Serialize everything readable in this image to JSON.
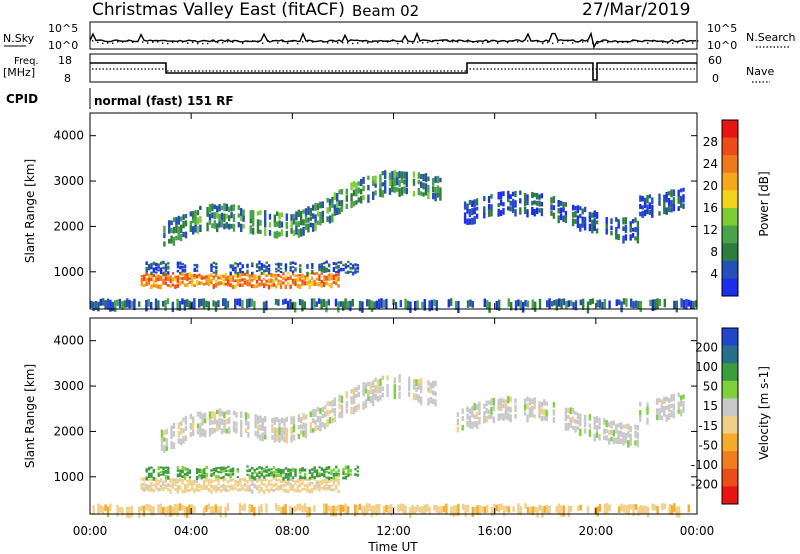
{
  "header": {
    "title": "Christmas Valley East (fitACF)",
    "beam": "Beam 02",
    "date": "27/Mar/2019"
  },
  "strips": {
    "nsky_label": "N.Sky",
    "nsearch_label": "N.Search",
    "noise_ticks": [
      "10^5",
      "10^0"
    ],
    "freq_label": "Freq.",
    "freq_unit": "[MHz]",
    "freq_ticks": [
      "18",
      "8"
    ],
    "nave_label": "Nave",
    "nave_ticks": [
      "60",
      "0"
    ],
    "cpid_label": "CPID",
    "cpid_text": "normal (fast) 151 RF"
  },
  "colors": {
    "power": [
      "#1b2fe8",
      "#2450b8",
      "#2e7d3f",
      "#4aa34a",
      "#7dcc33",
      "#f2d31b",
      "#f4a81e",
      "#ef7a1c",
      "#ec4c19",
      "#e71414"
    ],
    "velocity": [
      "#e81414",
      "#ec4c19",
      "#f07e1e",
      "#f7ab2a",
      "#f0d08a",
      "#c9c9c9",
      "#7ed13a",
      "#3c9b3c",
      "#2a6e8c",
      "#2246c8"
    ]
  },
  "chart_data": [
    {
      "type": "heatmap",
      "title": "Power",
      "ylabel": "Slant Range [km]",
      "xlabel": "Time UT",
      "x_ticks": [
        "00:00",
        "04:00",
        "08:00",
        "12:00",
        "16:00",
        "20:00",
        "00:00"
      ],
      "xlim_hours": [
        0,
        24
      ],
      "y_ticks": [
        1000,
        2000,
        3000,
        4000
      ],
      "ylim": [
        180,
        4500
      ],
      "colorbar": {
        "label": "Power [dB]",
        "ticks": [
          "4",
          "8",
          "12",
          "16",
          "20",
          "24",
          "28"
        ]
      },
      "bands": [
        {
          "name": "near-range echoes",
          "t": [
            2.0,
            9.8
          ],
          "range_km": [
            700,
            1000
          ],
          "dB": 24
        },
        {
          "name": "upper near-range",
          "t": [
            2.1,
            10.6
          ],
          "range_km": [
            1000,
            1250
          ],
          "dB": 6
        },
        {
          "name": "rising tongue",
          "t": [
            2.8,
            13.9
          ],
          "range_km": [
            1600,
            3400
          ],
          "dB": 10
        },
        {
          "name": "late-day patches",
          "t": [
            14.5,
            23.5
          ],
          "range_km": [
            2000,
            3100
          ],
          "dB": 6
        },
        {
          "name": "ground clutter",
          "t": [
            0.0,
            24.0
          ],
          "range_km": [
            180,
            420
          ],
          "dB": 8
        }
      ]
    },
    {
      "type": "heatmap",
      "title": "Velocity",
      "ylabel": "Slant Range [km]",
      "xlabel": "Time UT",
      "x_ticks": [
        "00:00",
        "04:00",
        "08:00",
        "12:00",
        "16:00",
        "20:00",
        "00:00"
      ],
      "xlim_hours": [
        0,
        24
      ],
      "y_ticks": [
        1000,
        2000,
        3000,
        4000
      ],
      "ylim": [
        180,
        4500
      ],
      "colorbar": {
        "label": "Velocity [m s-1]",
        "ticks": [
          "200",
          "100",
          "50",
          "15",
          "-15",
          "-50",
          "-100",
          "-200"
        ]
      },
      "bands": [
        {
          "name": "near-range echoes",
          "t": [
            2.0,
            9.8
          ],
          "range_km": [
            700,
            1000
          ],
          "ms": -30
        },
        {
          "name": "upper near-range",
          "t": [
            2.1,
            10.6
          ],
          "range_km": [
            1000,
            1250
          ],
          "ms": 60
        },
        {
          "name": "rising tongue",
          "t": [
            2.8,
            13.9
          ],
          "range_km": [
            1600,
            3400
          ],
          "ms": 0
        },
        {
          "name": "late-day patches",
          "t": [
            14.5,
            23.5
          ],
          "range_km": [
            2000,
            3100
          ],
          "ms": 0
        },
        {
          "name": "ground clutter",
          "t": [
            0.0,
            24.0
          ],
          "range_km": [
            180,
            420
          ],
          "ms": -40
        }
      ]
    }
  ]
}
